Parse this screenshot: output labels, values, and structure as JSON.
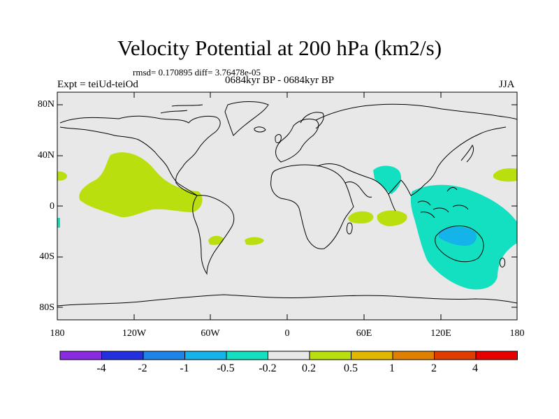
{
  "title": "Velocity Potential at 200 hPa (km2/s)",
  "stats": "rmsd= 0.170895 diff= 3.76478e-05",
  "experiment": "Expt = teiUd-teiOd",
  "period": "0684kyr BP - 0684kyr BP",
  "season": "JJA",
  "lat_labels": [
    "80N",
    "40N",
    "0",
    "40S",
    "80S"
  ],
  "lon_labels": [
    "180",
    "120W",
    "60W",
    "0",
    "60E",
    "120E",
    "180"
  ],
  "colorbar": {
    "colors": [
      "#8a2be2",
      "#2330e0",
      "#1e84e8",
      "#14b4ea",
      "#12e0c0",
      "#e8e8e8",
      "#b9df0f",
      "#e0b800",
      "#e08000",
      "#e03c00",
      "#e80000"
    ],
    "labels": [
      "-4",
      "-2",
      "-1",
      "-0.5",
      "-0.2",
      "0.2",
      "0.5",
      "1",
      "2",
      "4"
    ]
  },
  "palette": {
    "ocean": "#e8e8e8",
    "positive": "#b9df0f",
    "negative": "#12e0c0",
    "negative_strong": "#14b4ea"
  },
  "map_features": {
    "positive_regions": [
      "eastern-pacific-blob",
      "north-central-pacific",
      "western-edge",
      "western-indian-ocean",
      "central-indian-ocean",
      "south-america-south",
      "south-atlantic"
    ],
    "negative_regions": [
      "arabian-sea",
      "maritime-continent-australia",
      "west-edge-small"
    ],
    "strong_negative_regions": [
      "north-australia-core"
    ]
  }
}
